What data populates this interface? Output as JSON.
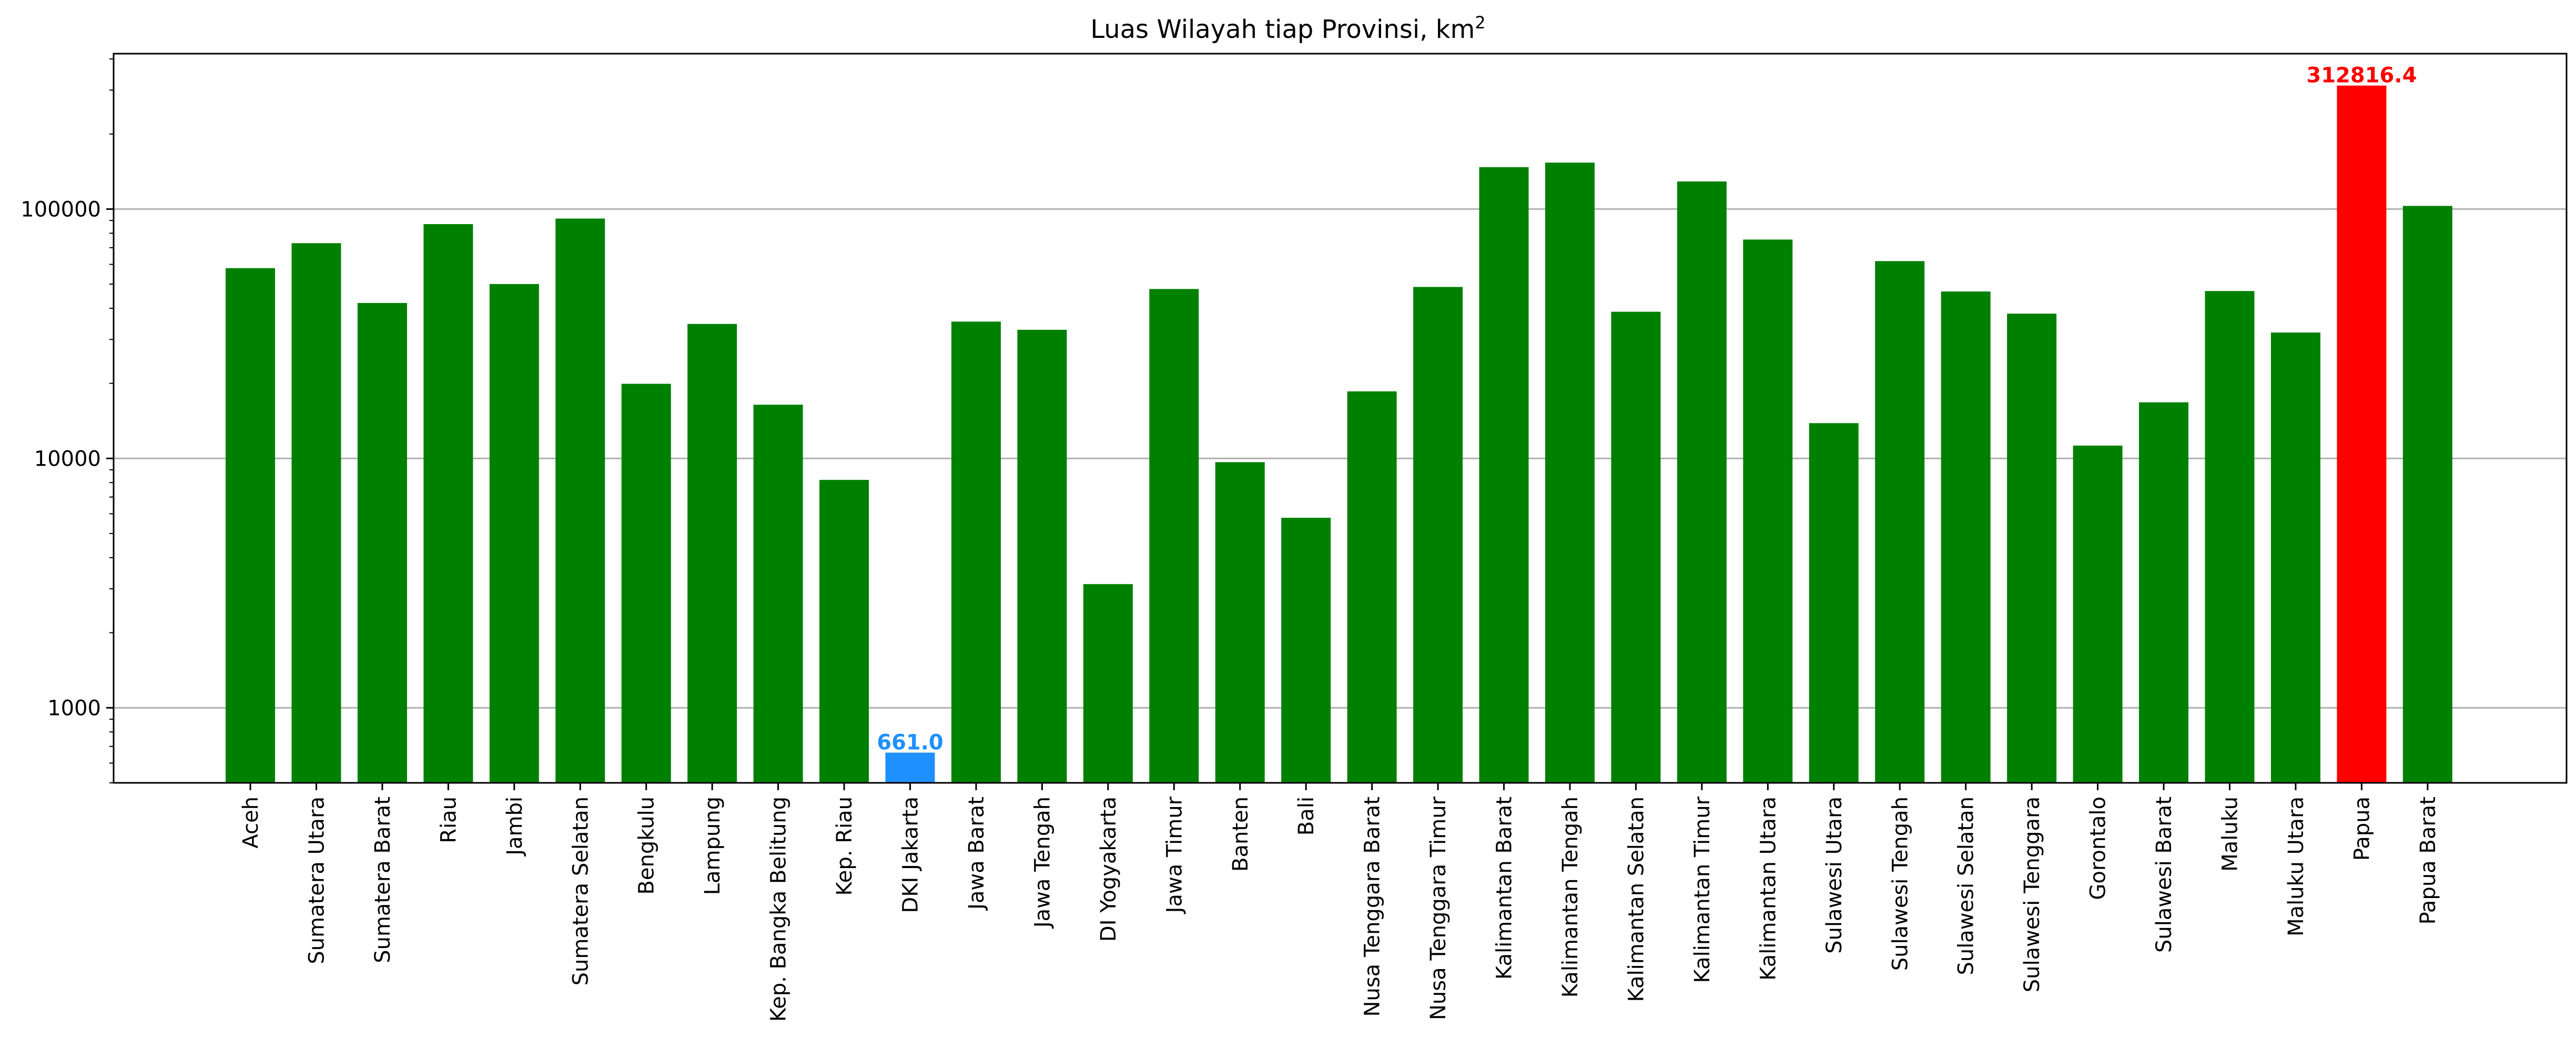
{
  "chart_data": {
    "type": "bar",
    "title": "Luas Wilayah tiap Provinsi, km",
    "title_superscript": "2",
    "xlabel": "",
    "ylabel": "",
    "y_scale": "log",
    "ylim": [
      500,
      420000
    ],
    "y_ticks": [
      1000,
      10000,
      100000
    ],
    "y_tick_labels": [
      "1000",
      "10000",
      "100000"
    ],
    "grid": "horizontal major gridlines",
    "legend": "none",
    "categories": [
      "Aceh",
      "Sumatera Utara",
      "Sumatera Barat",
      "Riau",
      "Jambi",
      "Sumatera Selatan",
      "Bengkulu",
      "Lampung",
      "Kep. Bangka Belitung",
      "Kep. Riau",
      "DKI Jakarta",
      "Jawa Barat",
      "Jawa Tengah",
      "DI Yogyakarta",
      "Jawa Timur",
      "Banten",
      "Bali",
      "Nusa Tenggara Barat",
      "Nusa Tenggara Timur",
      "Kalimantan Barat",
      "Kalimantan Tengah",
      "Kalimantan Selatan",
      "Kalimantan Timur",
      "Kalimantan Utara",
      "Sulawesi Utara",
      "Sulawesi Tengah",
      "Sulawesi Selatan",
      "Sulawesi Tenggara",
      "Gorontalo",
      "Sulawesi Barat",
      "Maluku",
      "Maluku Utara",
      "Papua",
      "Papua Barat"
    ],
    "values": [
      57956,
      72981,
      42012,
      87023,
      50058,
      91592,
      19919,
      34624,
      16424,
      8201,
      661.0,
      35378,
      32800,
      3133,
      47800,
      9663,
      5780,
      18572,
      48718,
      147307,
      153565,
      38744,
      129067,
      75468,
      13851,
      61841,
      46717,
      38068,
      11257,
      16787,
      46914,
      31983,
      312816.4,
      102955
    ],
    "colors": {
      "default": "#008000",
      "max": "#ff0000",
      "min": "#1e90ff"
    },
    "highlights": {
      "max": {
        "category": "Papua",
        "label": "312816.4"
      },
      "min": {
        "category": "DKI Jakarta",
        "label": "661.0"
      }
    }
  }
}
